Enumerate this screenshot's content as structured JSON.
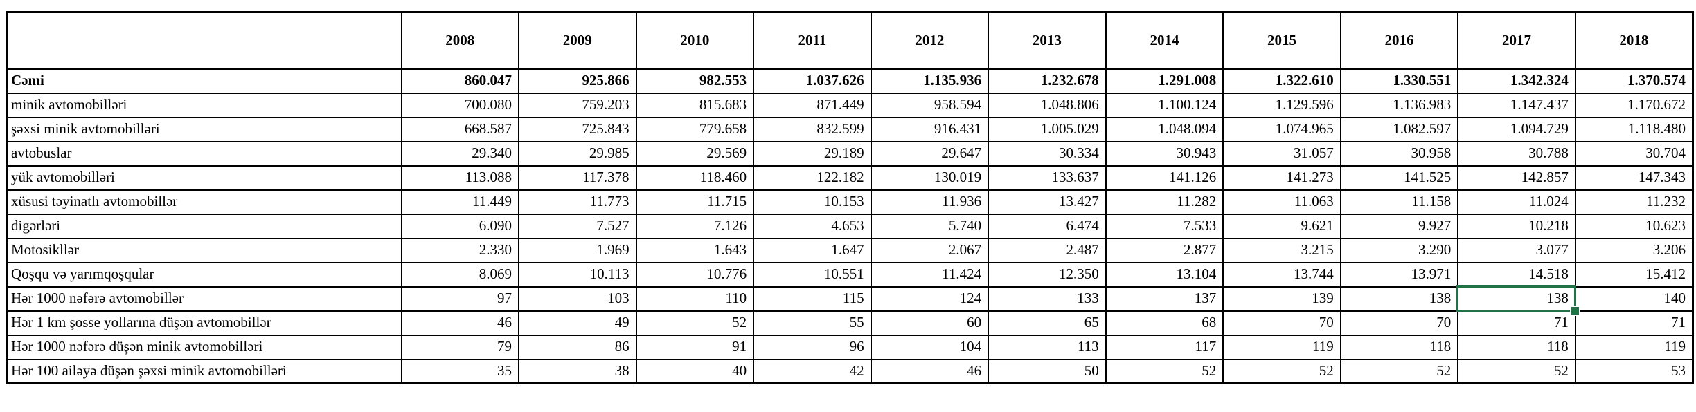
{
  "colors": {
    "grid_border": "#000000",
    "background": "#ffffff",
    "selection_green": "#217346"
  },
  "table": {
    "corner_label": "",
    "years": [
      "2008",
      "2009",
      "2010",
      "2011",
      "2012",
      "2013",
      "2014",
      "2015",
      "2016",
      "2017",
      "2018"
    ],
    "rows": [
      {
        "label": "Cəmi",
        "bold": true,
        "values": [
          "860.047",
          "925.866",
          "982.553",
          "1.037.626",
          "1.135.936",
          "1.232.678",
          "1.291.008",
          "1.322.610",
          "1.330.551",
          "1.342.324",
          "1.370.574"
        ]
      },
      {
        "label": "minik avtomobilləri",
        "bold": false,
        "values": [
          "700.080",
          "759.203",
          "815.683",
          "871.449",
          "958.594",
          "1.048.806",
          "1.100.124",
          "1.129.596",
          "1.136.983",
          "1.147.437",
          "1.170.672"
        ]
      },
      {
        "label": "şəxsi minik avtomobilləri",
        "bold": false,
        "values": [
          "668.587",
          "725.843",
          "779.658",
          "832.599",
          "916.431",
          "1.005.029",
          "1.048.094",
          "1.074.965",
          "1.082.597",
          "1.094.729",
          "1.118.480"
        ]
      },
      {
        "label": "avtobuslar",
        "bold": false,
        "values": [
          "29.340",
          "29.985",
          "29.569",
          "29.189",
          "29.647",
          "30.334",
          "30.943",
          "31.057",
          "30.958",
          "30.788",
          "30.704"
        ]
      },
      {
        "label": "yük avtomobilləri",
        "bold": false,
        "values": [
          "113.088",
          "117.378",
          "118.460",
          "122.182",
          "130.019",
          "133.637",
          "141.126",
          "141.273",
          "141.525",
          "142.857",
          "147.343"
        ]
      },
      {
        "label": "xüsusi təyinatlı avtomobillər",
        "bold": false,
        "values": [
          "11.449",
          "11.773",
          "11.715",
          "10.153",
          "11.936",
          "13.427",
          "11.282",
          "11.063",
          "11.158",
          "11.024",
          "11.232"
        ]
      },
      {
        "label": "digərləri",
        "bold": false,
        "values": [
          "6.090",
          "7.527",
          "7.126",
          "4.653",
          "5.740",
          "6.474",
          "7.533",
          "9.621",
          "9.927",
          "10.218",
          "10.623"
        ]
      },
      {
        "label": "Motosikllər",
        "bold": false,
        "values": [
          "2.330",
          "1.969",
          "1.643",
          "1.647",
          "2.067",
          "2.487",
          "2.877",
          "3.215",
          "3.290",
          "3.077",
          "3.206"
        ]
      },
      {
        "label": "Qoşqu və yarımqoşqular",
        "bold": false,
        "values": [
          "8.069",
          "10.113",
          "10.776",
          "10.551",
          "11.424",
          "12.350",
          "13.104",
          "13.744",
          "13.971",
          "14.518",
          "15.412"
        ]
      },
      {
        "label": "Hər 1000 nəfərə avtomobillər",
        "bold": false,
        "values": [
          "97",
          "103",
          "110",
          "115",
          "124",
          "133",
          "137",
          "139",
          "138",
          "138",
          "140"
        ]
      },
      {
        "label": "Hər 1 km şosse yollarına düşən avtomobillər",
        "bold": false,
        "values": [
          "46",
          "49",
          "52",
          "55",
          "60",
          "65",
          "68",
          "70",
          "70",
          "71",
          "71"
        ]
      },
      {
        "label": "Hər 1000 nəfərə düşən minik avtomobilləri",
        "bold": false,
        "values": [
          "79",
          "86",
          "91",
          "96",
          "104",
          "113",
          "117",
          "119",
          "118",
          "118",
          "119"
        ]
      },
      {
        "label": "Hər 100 ailəyə düşən şəxsi minik avtomobilləri",
        "bold": false,
        "values": [
          "35",
          "38",
          "40",
          "42",
          "46",
          "50",
          "52",
          "52",
          "52",
          "52",
          "53"
        ]
      }
    ]
  },
  "selection": {
    "row_index": 9,
    "col_index": 9,
    "selected_value": "138",
    "selected_year": "2017",
    "selected_row_label": "Hər 1000 nəfərə avtomobillər"
  }
}
